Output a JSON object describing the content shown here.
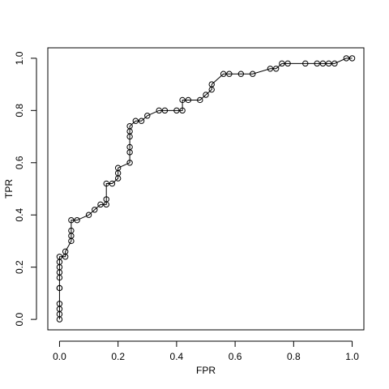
{
  "chart_data": {
    "type": "line",
    "xlabel": "FPR",
    "ylabel": "TPR",
    "color": "#000000",
    "marker": "open-circle",
    "xlim": [
      -0.04,
      1.04
    ],
    "ylim": [
      -0.04,
      1.04
    ],
    "xticks": [
      {
        "value": 0,
        "label": "0.0"
      },
      0.2,
      0.4,
      0.6,
      0.8,
      {
        "value": 1,
        "label": "1.0"
      }
    ],
    "yticks": [
      {
        "value": 0,
        "label": "0.0"
      },
      0.2,
      0.4,
      0.6,
      0.8,
      {
        "value": 1,
        "label": "1.0"
      }
    ],
    "x": [
      0,
      0,
      0,
      0,
      0,
      0,
      0,
      0,
      0,
      0,
      0,
      0.02,
      0.02,
      0.04,
      0.04,
      0.04,
      0.04,
      0.06,
      0.1,
      0.12,
      0.14,
      0.16,
      0.16,
      0.16,
      0.18,
      0.2,
      0.2,
      0.2,
      0.24,
      0.24,
      0.24,
      0.24,
      0.24,
      0.24,
      0.26,
      0.28,
      0.3,
      0.34,
      0.36,
      0.4,
      0.42,
      0.42,
      0.44,
      0.48,
      0.5,
      0.52,
      0.52,
      0.56,
      0.58,
      0.62,
      0.66,
      0.72,
      0.74,
      0.76,
      0.78,
      0.84,
      0.88,
      0.9,
      0.92,
      0.94,
      0.98,
      1.0
    ],
    "values": [
      0,
      0.02,
      0.04,
      0.06,
      0.12,
      0.12,
      0.16,
      0.18,
      0.2,
      0.22,
      0.24,
      0.24,
      0.26,
      0.3,
      0.32,
      0.34,
      0.38,
      0.38,
      0.4,
      0.42,
      0.44,
      0.44,
      0.46,
      0.52,
      0.52,
      0.54,
      0.56,
      0.58,
      0.6,
      0.64,
      0.66,
      0.7,
      0.72,
      0.74,
      0.76,
      0.76,
      0.78,
      0.8,
      0.8,
      0.8,
      0.8,
      0.84,
      0.84,
      0.84,
      0.86,
      0.88,
      0.9,
      0.94,
      0.94,
      0.94,
      0.94,
      0.96,
      0.96,
      0.98,
      0.98,
      0.98,
      0.98,
      0.98,
      0.98,
      0.98,
      1.0,
      1.0
    ]
  }
}
